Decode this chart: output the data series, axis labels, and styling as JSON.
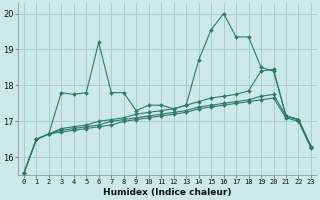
{
  "xlabel": "Humidex (Indice chaleur)",
  "background_color": "#cce8e8",
  "grid_color": "#aacccc",
  "line_color": "#2d7a6a",
  "xlim": [
    -0.5,
    23.5
  ],
  "ylim": [
    15.5,
    20.3
  ],
  "yticks": [
    16,
    17,
    18,
    19,
    20
  ],
  "xticks": [
    0,
    1,
    2,
    3,
    4,
    5,
    6,
    7,
    8,
    9,
    10,
    11,
    12,
    13,
    14,
    15,
    16,
    17,
    18,
    19,
    20,
    21,
    22,
    23
  ],
  "series": [
    [
      15.55,
      16.5,
      16.65,
      17.8,
      17.75,
      17.8,
      19.2,
      17.8,
      17.8,
      17.3,
      17.45,
      17.45,
      17.35,
      17.45,
      18.7,
      19.55,
      20.0,
      19.35,
      19.35,
      18.5,
      18.4,
      17.15,
      17.05,
      16.3
    ],
    [
      15.55,
      16.5,
      16.65,
      16.8,
      16.85,
      16.9,
      17.0,
      17.05,
      17.1,
      17.2,
      17.25,
      17.3,
      17.35,
      17.45,
      17.55,
      17.65,
      17.7,
      17.75,
      17.85,
      18.4,
      18.45,
      17.15,
      17.05,
      16.3
    ],
    [
      15.55,
      16.5,
      16.65,
      16.75,
      16.8,
      16.85,
      16.9,
      17.0,
      17.05,
      17.1,
      17.15,
      17.2,
      17.25,
      17.3,
      17.4,
      17.45,
      17.5,
      17.55,
      17.6,
      17.7,
      17.75,
      17.15,
      17.05,
      16.3
    ],
    [
      15.55,
      16.5,
      16.65,
      16.7,
      16.75,
      16.8,
      16.85,
      16.9,
      17.0,
      17.05,
      17.1,
      17.15,
      17.2,
      17.25,
      17.35,
      17.4,
      17.45,
      17.5,
      17.55,
      17.6,
      17.65,
      17.1,
      17.0,
      16.25
    ]
  ]
}
